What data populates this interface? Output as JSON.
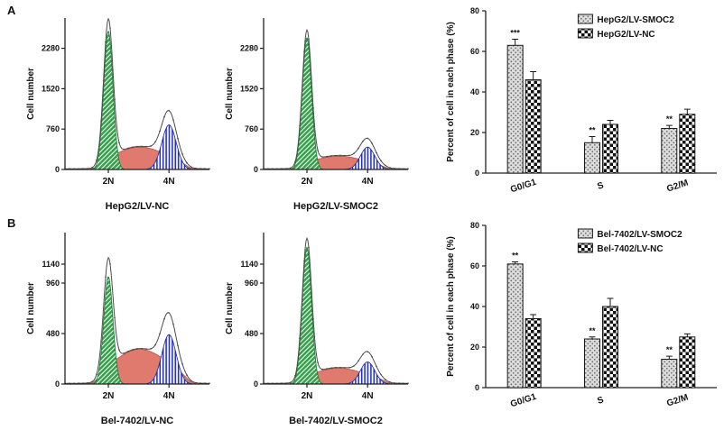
{
  "figure": {
    "panel_labels": [
      "A",
      "B"
    ]
  },
  "colors": {
    "g0g1_green": "#35a14b",
    "s_red": "#de6f62",
    "g2m_blue": "#2433c0",
    "bar_gray": "#dcdcdc",
    "checker_dark": "#111111",
    "axis": "#222222",
    "trace": "#4d4d4d"
  },
  "chart_data": [
    {
      "panel": "A",
      "type": "area",
      "subtype": "cell-cycle-dna-histogram",
      "title": "HepG2/LV-NC",
      "ylabel": "Cell number",
      "yticks": [
        0,
        760,
        1520,
        2280
      ],
      "ymax": 2850,
      "xticks": [
        "2N",
        "4N"
      ],
      "peaks": {
        "g0g1": 2600,
        "s": 420,
        "g2m": 840
      }
    },
    {
      "panel": "A",
      "type": "area",
      "subtype": "cell-cycle-dna-histogram",
      "title": "HepG2/LV-SMOC2",
      "ylabel": "Cell number",
      "yticks": [
        0,
        760,
        1520,
        2280
      ],
      "ymax": 2850,
      "xticks": [
        "2N",
        "4N"
      ],
      "peaks": {
        "g0g1": 2480,
        "s": 250,
        "g2m": 420
      }
    },
    {
      "panel": "A",
      "type": "bar",
      "ylabel": "Percent of cell in each phase (%)",
      "ylim": [
        0,
        80
      ],
      "yticks": [
        0,
        20,
        40,
        60,
        80
      ],
      "categories": [
        "G0/G1",
        "S",
        "G2/M"
      ],
      "legend_position": "top-right",
      "series": [
        {
          "name": "HepG2/LV-SMOC2",
          "values": [
            63,
            15,
            22
          ],
          "errors": [
            3,
            3,
            1.5
          ],
          "significance": [
            "***",
            "**",
            "**"
          ]
        },
        {
          "name": "HepG2/LV-NC",
          "values": [
            46,
            24,
            29
          ],
          "errors": [
            4,
            2,
            2.5
          ],
          "significance": [
            "",
            "",
            ""
          ]
        }
      ]
    },
    {
      "panel": "B",
      "type": "area",
      "subtype": "cell-cycle-dna-histogram",
      "title": "Bel-7402/LV-NC",
      "ylabel": "Cell number",
      "yticks": [
        0,
        480,
        960,
        1140
      ],
      "ymax": 1440,
      "xticks": [
        "2N",
        "4N"
      ],
      "peaks": {
        "g0g1": 1020,
        "s": 330,
        "g2m": 470
      }
    },
    {
      "panel": "B",
      "type": "area",
      "subtype": "cell-cycle-dna-histogram",
      "title": "Bel-7402/LV-SMOC2",
      "ylabel": "Cell number",
      "yticks": [
        0,
        480,
        960,
        1140
      ],
      "ymax": 1440,
      "xticks": [
        "2N",
        "4N"
      ],
      "peaks": {
        "g0g1": 1300,
        "s": 150,
        "g2m": 210
      }
    },
    {
      "panel": "B",
      "type": "bar",
      "ylabel": "Percent of cell in each phase (%)",
      "ylim": [
        0,
        80
      ],
      "yticks": [
        0,
        20,
        40,
        60,
        80
      ],
      "categories": [
        "G0/G1",
        "S",
        "G2/M"
      ],
      "legend_position": "top-right",
      "series": [
        {
          "name": "Bel-7402/LV-SMOC2",
          "values": [
            61,
            24,
            14
          ],
          "errors": [
            1,
            1,
            1.5
          ],
          "significance": [
            "**",
            "**",
            "**"
          ]
        },
        {
          "name": "Bel-7402/LV-NC",
          "values": [
            34,
            40,
            25
          ],
          "errors": [
            2,
            4,
            1.5
          ],
          "significance": [
            "",
            "",
            ""
          ]
        }
      ]
    }
  ]
}
